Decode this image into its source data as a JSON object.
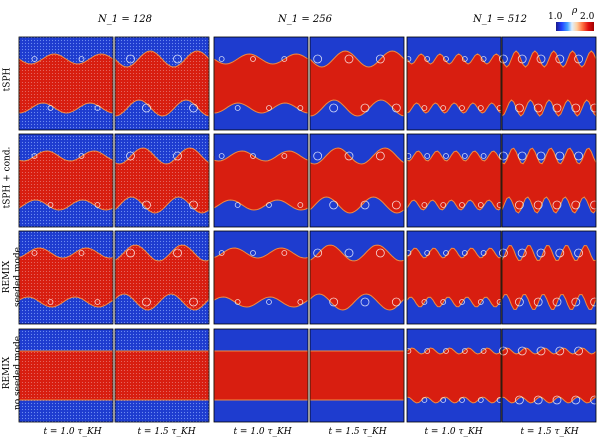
{
  "columns": [
    {
      "label": "N_1 = 128"
    },
    {
      "label": "N_1 = 256"
    },
    {
      "label": "N_1 = 512"
    }
  ],
  "rows": [
    {
      "lines": [
        "tSPH"
      ]
    },
    {
      "lines": [
        "tSPH + cond."
      ]
    },
    {
      "lines": [
        "REMIX",
        "seeded mode"
      ]
    },
    {
      "lines": [
        "REMIX",
        "no seeded mode"
      ]
    }
  ],
  "times": [
    "t = 1.0 τ_KH",
    "t = 1.5 τ_KH"
  ],
  "colorbar": {
    "symbol": "ρ",
    "min": "1.0",
    "max": "2.0"
  },
  "colors": {
    "dense": "#d81e10",
    "light": "#1e3ccf",
    "edge": "#f08a40"
  }
}
